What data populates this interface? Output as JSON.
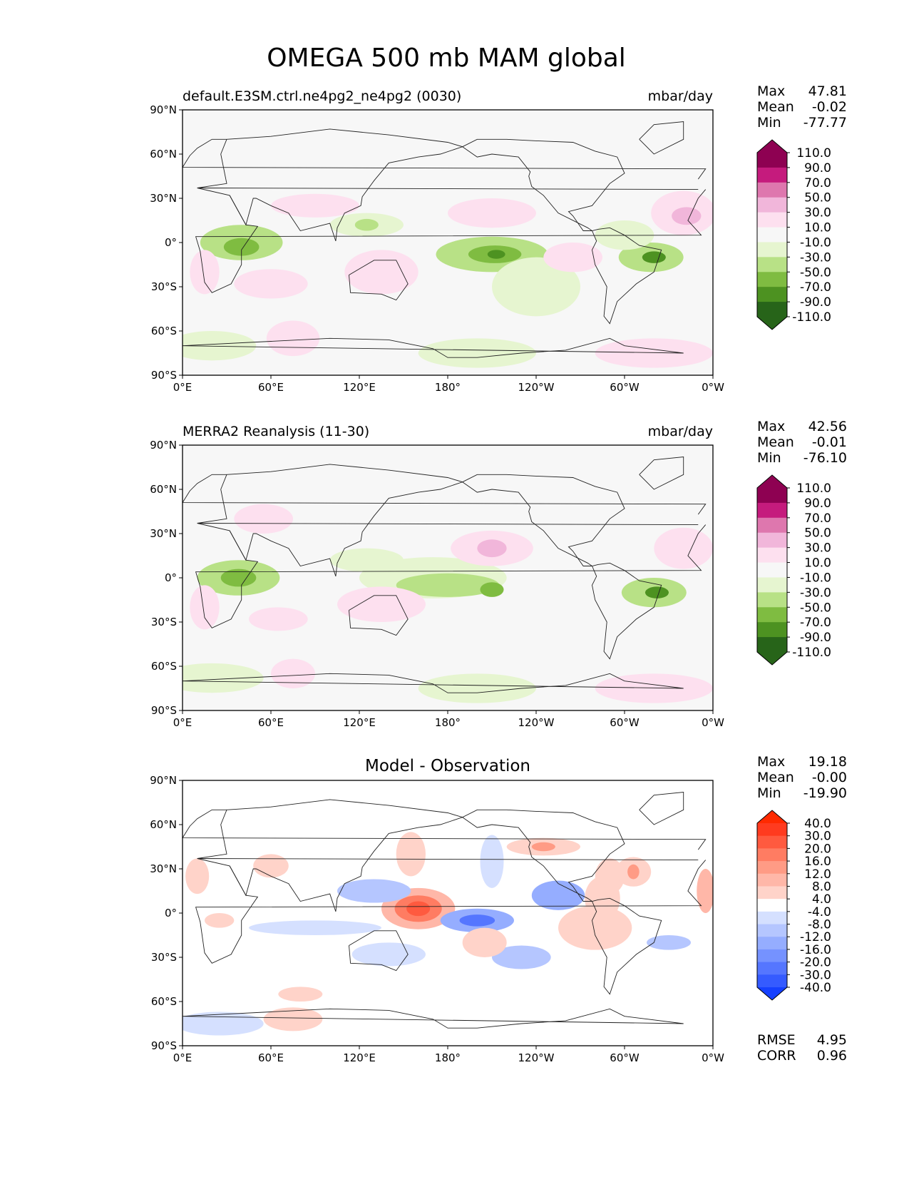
{
  "figure": {
    "title": "OMEGA 500 mb MAM global"
  },
  "axes": {
    "lat_ticks": [
      "90°N",
      "60°N",
      "30°N",
      "0°",
      "30°S",
      "60°S",
      "90°S"
    ],
    "lon_ticks": [
      "0°E",
      "60°E",
      "120°E",
      "180°",
      "120°W",
      "60°W",
      "0°W"
    ],
    "lat_range": [
      -90,
      90
    ],
    "lon_range": [
      0,
      360
    ]
  },
  "panels": [
    {
      "id": "model",
      "left_title": "default.E3SM.ctrl.ne4pg2_ne4pg2 (0030)",
      "center_title": "",
      "right_title": "mbar/day",
      "stats": [
        {
          "label": "Max",
          "value": "47.81"
        },
        {
          "label": "Mean",
          "value": "-0.02"
        },
        {
          "label": "Min",
          "value": "-77.77"
        }
      ],
      "colorbar_levels": [
        "110.0",
        "90.0",
        "70.0",
        "50.0",
        "30.0",
        "10.0",
        "-10.0",
        "-30.0",
        "-50.0",
        "-70.0",
        "-90.0",
        "-110.0"
      ],
      "colorbar_colors": [
        "#8e0152",
        "#c51b7d",
        "#de77ae",
        "#f1b6da",
        "#fde0ef",
        "#f7f7f7",
        "#e6f5d0",
        "#b8e186",
        "#7fbc41",
        "#4d9221",
        "#276419"
      ],
      "over_color": "#8e0152",
      "under_color": "#276419",
      "footer_stats": [],
      "blobs": [
        {
          "lon": 40,
          "lat": 0,
          "rx": 28,
          "ry": 12,
          "level": 7
        },
        {
          "lon": 40,
          "lat": -3,
          "rx": 12,
          "ry": 6,
          "level": 8
        },
        {
          "lon": 210,
          "lat": -8,
          "rx": 38,
          "ry": 12,
          "level": 7
        },
        {
          "lon": 212,
          "lat": -8,
          "rx": 18,
          "ry": 6,
          "level": 8
        },
        {
          "lon": 213,
          "lat": -8,
          "rx": 6,
          "ry": 3,
          "level": 9
        },
        {
          "lon": 318,
          "lat": -10,
          "rx": 22,
          "ry": 10,
          "level": 7
        },
        {
          "lon": 320,
          "lat": -10,
          "rx": 8,
          "ry": 4,
          "level": 9
        },
        {
          "lon": 300,
          "lat": 5,
          "rx": 20,
          "ry": 10,
          "level": 6
        },
        {
          "lon": 125,
          "lat": 12,
          "rx": 25,
          "ry": 8,
          "level": 6
        },
        {
          "lon": 125,
          "lat": 12,
          "rx": 8,
          "ry": 4,
          "level": 7
        },
        {
          "lon": 240,
          "lat": -30,
          "rx": 30,
          "ry": 20,
          "level": 6
        },
        {
          "lon": 15,
          "lat": -20,
          "rx": 10,
          "ry": 15,
          "level": 4
        },
        {
          "lon": 340,
          "lat": 20,
          "rx": 22,
          "ry": 15,
          "level": 4
        },
        {
          "lon": 342,
          "lat": 18,
          "rx": 10,
          "ry": 6,
          "level": 3
        },
        {
          "lon": 210,
          "lat": 20,
          "rx": 30,
          "ry": 10,
          "level": 4
        },
        {
          "lon": 265,
          "lat": -10,
          "rx": 20,
          "ry": 10,
          "level": 4
        },
        {
          "lon": 90,
          "lat": 25,
          "rx": 30,
          "ry": 8,
          "level": 4
        },
        {
          "lon": 135,
          "lat": -20,
          "rx": 25,
          "ry": 15,
          "level": 4
        },
        {
          "lon": 60,
          "lat": -28,
          "rx": 25,
          "ry": 10,
          "level": 4
        },
        {
          "lon": 20,
          "lat": -70,
          "rx": 30,
          "ry": 10,
          "level": 6
        },
        {
          "lon": 75,
          "lat": -65,
          "rx": 18,
          "ry": 12,
          "level": 4
        },
        {
          "lon": 320,
          "lat": -75,
          "rx": 40,
          "ry": 10,
          "level": 4
        },
        {
          "lon": 200,
          "lat": -75,
          "rx": 40,
          "ry": 10,
          "level": 6
        }
      ]
    },
    {
      "id": "obs",
      "left_title": "MERRA2 Reanalysis (11-30)",
      "center_title": "",
      "right_title": "mbar/day",
      "stats": [
        {
          "label": "Max",
          "value": "42.56"
        },
        {
          "label": "Mean",
          "value": "-0.01"
        },
        {
          "label": "Min",
          "value": "-76.10"
        }
      ],
      "colorbar_levels": [
        "110.0",
        "90.0",
        "70.0",
        "50.0",
        "30.0",
        "10.0",
        "-10.0",
        "-30.0",
        "-50.0",
        "-70.0",
        "-90.0",
        "-110.0"
      ],
      "colorbar_colors": [
        "#8e0152",
        "#c51b7d",
        "#de77ae",
        "#f1b6da",
        "#fde0ef",
        "#f7f7f7",
        "#e6f5d0",
        "#b8e186",
        "#7fbc41",
        "#4d9221",
        "#276419"
      ],
      "over_color": "#8e0152",
      "under_color": "#276419",
      "footer_stats": [],
      "blobs": [
        {
          "lon": 38,
          "lat": 0,
          "rx": 28,
          "ry": 12,
          "level": 7
        },
        {
          "lon": 38,
          "lat": 0,
          "rx": 12,
          "ry": 6,
          "level": 8
        },
        {
          "lon": 170,
          "lat": 0,
          "rx": 50,
          "ry": 14,
          "level": 6
        },
        {
          "lon": 180,
          "lat": -5,
          "rx": 35,
          "ry": 8,
          "level": 7
        },
        {
          "lon": 210,
          "lat": -8,
          "rx": 8,
          "ry": 5,
          "level": 8
        },
        {
          "lon": 320,
          "lat": -10,
          "rx": 22,
          "ry": 10,
          "level": 7
        },
        {
          "lon": 322,
          "lat": -10,
          "rx": 8,
          "ry": 4,
          "level": 9
        },
        {
          "lon": 125,
          "lat": 12,
          "rx": 25,
          "ry": 8,
          "level": 6
        },
        {
          "lon": 210,
          "lat": 20,
          "rx": 28,
          "ry": 12,
          "level": 4
        },
        {
          "lon": 210,
          "lat": 20,
          "rx": 10,
          "ry": 6,
          "level": 3
        },
        {
          "lon": 340,
          "lat": 20,
          "rx": 20,
          "ry": 14,
          "level": 4
        },
        {
          "lon": 15,
          "lat": -20,
          "rx": 10,
          "ry": 15,
          "level": 4
        },
        {
          "lon": 135,
          "lat": -18,
          "rx": 30,
          "ry": 12,
          "level": 4
        },
        {
          "lon": 20,
          "lat": -68,
          "rx": 35,
          "ry": 10,
          "level": 6
        },
        {
          "lon": 75,
          "lat": -65,
          "rx": 15,
          "ry": 10,
          "level": 4
        },
        {
          "lon": 320,
          "lat": -75,
          "rx": 40,
          "ry": 10,
          "level": 4
        },
        {
          "lon": 200,
          "lat": -75,
          "rx": 40,
          "ry": 10,
          "level": 6
        },
        {
          "lon": 55,
          "lat": 40,
          "rx": 20,
          "ry": 10,
          "level": 4
        },
        {
          "lon": 65,
          "lat": -28,
          "rx": 20,
          "ry": 8,
          "level": 4
        }
      ]
    },
    {
      "id": "diff",
      "left_title": "",
      "center_title": "Model - Observation",
      "right_title": "",
      "stats": [
        {
          "label": "Max",
          "value": "19.18"
        },
        {
          "label": "Mean",
          "value": "-0.00"
        },
        {
          "label": "Min",
          "value": "-19.90"
        }
      ],
      "colorbar_levels": [
        "40.0",
        "30.0",
        "20.0",
        "16.0",
        "12.0",
        "8.0",
        "4.0",
        "-4.0",
        "-8.0",
        "-12.0",
        "-16.0",
        "-20.0",
        "-30.0",
        "-40.0"
      ],
      "colorbar_colors": [
        "#ff3b1f",
        "#ff5a3f",
        "#ff7c62",
        "#ff9b85",
        "#ffb7a8",
        "#ffd3c9",
        "#ffffff",
        "#d5e0ff",
        "#b5c6ff",
        "#95adff",
        "#7592ff",
        "#5576ff",
        "#355bff"
      ],
      "over_color": "#ff2a00",
      "under_color": "#1540ff",
      "footer_stats": [
        {
          "label": "RMSE",
          "value": "4.95"
        },
        {
          "label": "CORR",
          "value": "0.96"
        }
      ],
      "blobs": [
        {
          "lon": 160,
          "lat": 3,
          "rx": 25,
          "ry": 14,
          "level": 4
        },
        {
          "lon": 160,
          "lat": 3,
          "rx": 16,
          "ry": 9,
          "level": 2
        },
        {
          "lon": 160,
          "lat": 3,
          "rx": 8,
          "ry": 5,
          "level": 1
        },
        {
          "lon": 200,
          "lat": -5,
          "rx": 25,
          "ry": 8,
          "level": 9
        },
        {
          "lon": 200,
          "lat": -5,
          "rx": 12,
          "ry": 4,
          "level": 11
        },
        {
          "lon": 255,
          "lat": 12,
          "rx": 18,
          "ry": 10,
          "level": 9
        },
        {
          "lon": 130,
          "lat": 15,
          "rx": 25,
          "ry": 8,
          "level": 8
        },
        {
          "lon": 230,
          "lat": -30,
          "rx": 20,
          "ry": 8,
          "level": 8
        },
        {
          "lon": 90,
          "lat": -10,
          "rx": 45,
          "ry": 5,
          "level": 7
        },
        {
          "lon": 140,
          "lat": -28,
          "rx": 25,
          "ry": 8,
          "level": 7
        },
        {
          "lon": 205,
          "lat": -20,
          "rx": 15,
          "ry": 10,
          "level": 5
        },
        {
          "lon": 280,
          "lat": -10,
          "rx": 25,
          "ry": 15,
          "level": 5
        },
        {
          "lon": 285,
          "lat": 10,
          "rx": 12,
          "ry": 15,
          "level": 5
        },
        {
          "lon": 155,
          "lat": 40,
          "rx": 10,
          "ry": 15,
          "level": 5
        },
        {
          "lon": 210,
          "lat": 35,
          "rx": 8,
          "ry": 18,
          "level": 7
        },
        {
          "lon": 290,
          "lat": 25,
          "rx": 10,
          "ry": 12,
          "level": 5
        },
        {
          "lon": 245,
          "lat": 45,
          "rx": 25,
          "ry": 6,
          "level": 5
        },
        {
          "lon": 245,
          "lat": 45,
          "rx": 8,
          "ry": 3,
          "level": 3
        },
        {
          "lon": 306,
          "lat": 28,
          "rx": 12,
          "ry": 10,
          "level": 5
        },
        {
          "lon": 306,
          "lat": 28,
          "rx": 4,
          "ry": 5,
          "level": 3
        },
        {
          "lon": 355,
          "lat": 15,
          "rx": 6,
          "ry": 15,
          "level": 4
        },
        {
          "lon": 25,
          "lat": -75,
          "rx": 30,
          "ry": 8,
          "level": 7
        },
        {
          "lon": 75,
          "lat": -72,
          "rx": 20,
          "ry": 8,
          "level": 5
        },
        {
          "lon": 80,
          "lat": -55,
          "rx": 15,
          "ry": 5,
          "level": 5
        },
        {
          "lon": 25,
          "lat": -5,
          "rx": 10,
          "ry": 5,
          "level": 5
        },
        {
          "lon": 60,
          "lat": 32,
          "rx": 12,
          "ry": 8,
          "level": 5
        },
        {
          "lon": 10,
          "lat": 25,
          "rx": 8,
          "ry": 12,
          "level": 5
        },
        {
          "lon": 330,
          "lat": -20,
          "rx": 15,
          "ry": 5,
          "level": 8
        }
      ]
    }
  ],
  "coastlines": [
    [
      [
        350,
        36
      ],
      [
        10,
        37
      ],
      [
        32,
        32
      ],
      [
        43,
        12
      ],
      [
        51,
        11
      ],
      [
        40,
        -5
      ],
      [
        40,
        -15
      ],
      [
        33,
        -28
      ],
      [
        20,
        -34
      ],
      [
        15,
        -27
      ],
      [
        12,
        -6
      ],
      [
        9,
        4
      ],
      [
        -8,
        5
      ],
      [
        -17,
        15
      ],
      [
        -10,
        30
      ],
      [
        -5,
        36
      ]
    ],
    [
      [
        10,
        37
      ],
      [
        30,
        40
      ],
      [
        26,
        60
      ],
      [
        30,
        70
      ],
      [
        60,
        72
      ],
      [
        100,
        77
      ],
      [
        140,
        73
      ],
      [
        180,
        68
      ],
      [
        190,
        65
      ],
      [
        175,
        60
      ],
      [
        160,
        58
      ],
      [
        140,
        54
      ],
      [
        130,
        42
      ],
      [
        122,
        31
      ],
      [
        121,
        25
      ],
      [
        110,
        20
      ],
      [
        105,
        10
      ],
      [
        104,
        1
      ],
      [
        100,
        13
      ],
      [
        80,
        8
      ],
      [
        72,
        20
      ],
      [
        60,
        25
      ],
      [
        50,
        30
      ],
      [
        48,
        30
      ],
      [
        43,
        12
      ],
      [
        32,
        32
      ]
    ],
    [
      [
        350,
        43
      ],
      [
        355,
        50
      ],
      [
        0,
        51
      ],
      [
        5,
        59
      ],
      [
        10,
        64
      ],
      [
        20,
        70
      ],
      [
        30,
        70
      ]
    ],
    [
      [
        113,
        -22
      ],
      [
        114,
        -34
      ],
      [
        135,
        -35
      ],
      [
        145,
        -39
      ],
      [
        153,
        -28
      ],
      [
        145,
        -12
      ],
      [
        136,
        -12
      ],
      [
        130,
        -12
      ],
      [
        113,
        -22
      ]
    ],
    [
      [
        190,
        65
      ],
      [
        200,
        70
      ],
      [
        220,
        70
      ],
      [
        240,
        69
      ],
      [
        265,
        68
      ],
      [
        280,
        62
      ],
      [
        295,
        58
      ],
      [
        300,
        47
      ],
      [
        290,
        40
      ],
      [
        282,
        30
      ],
      [
        278,
        25
      ],
      [
        262,
        21
      ],
      [
        265,
        18
      ],
      [
        272,
        8
      ],
      [
        278,
        8
      ],
      [
        282,
        9
      ],
      [
        290,
        10
      ],
      [
        300,
        5
      ],
      [
        310,
        -2
      ],
      [
        325,
        -5
      ],
      [
        320,
        -20
      ],
      [
        308,
        -28
      ],
      [
        295,
        -40
      ],
      [
        290,
        -55
      ],
      [
        286,
        -50
      ],
      [
        288,
        -30
      ],
      [
        280,
        -15
      ],
      [
        278,
        -5
      ],
      [
        281,
        1
      ],
      [
        278,
        8
      ],
      [
        275,
        10
      ],
      [
        255,
        20
      ],
      [
        245,
        32
      ],
      [
        237,
        38
      ],
      [
        235,
        45
      ],
      [
        236,
        48
      ],
      [
        228,
        58
      ],
      [
        210,
        60
      ],
      [
        200,
        58
      ],
      [
        190,
        65
      ]
    ],
    [
      [
        310,
        70
      ],
      [
        320,
        80
      ],
      [
        340,
        82
      ],
      [
        340,
        70
      ],
      [
        320,
        60
      ],
      [
        310,
        70
      ]
    ],
    [
      [
        0,
        -70
      ],
      [
        60,
        -67
      ],
      [
        100,
        -65
      ],
      [
        140,
        -66
      ],
      [
        170,
        -72
      ],
      [
        180,
        -78
      ],
      [
        200,
        -78
      ],
      [
        230,
        -75
      ],
      [
        260,
        -73
      ],
      [
        290,
        -65
      ],
      [
        300,
        -70
      ],
      [
        340,
        -75
      ],
      [
        360,
        -70
      ]
    ]
  ]
}
